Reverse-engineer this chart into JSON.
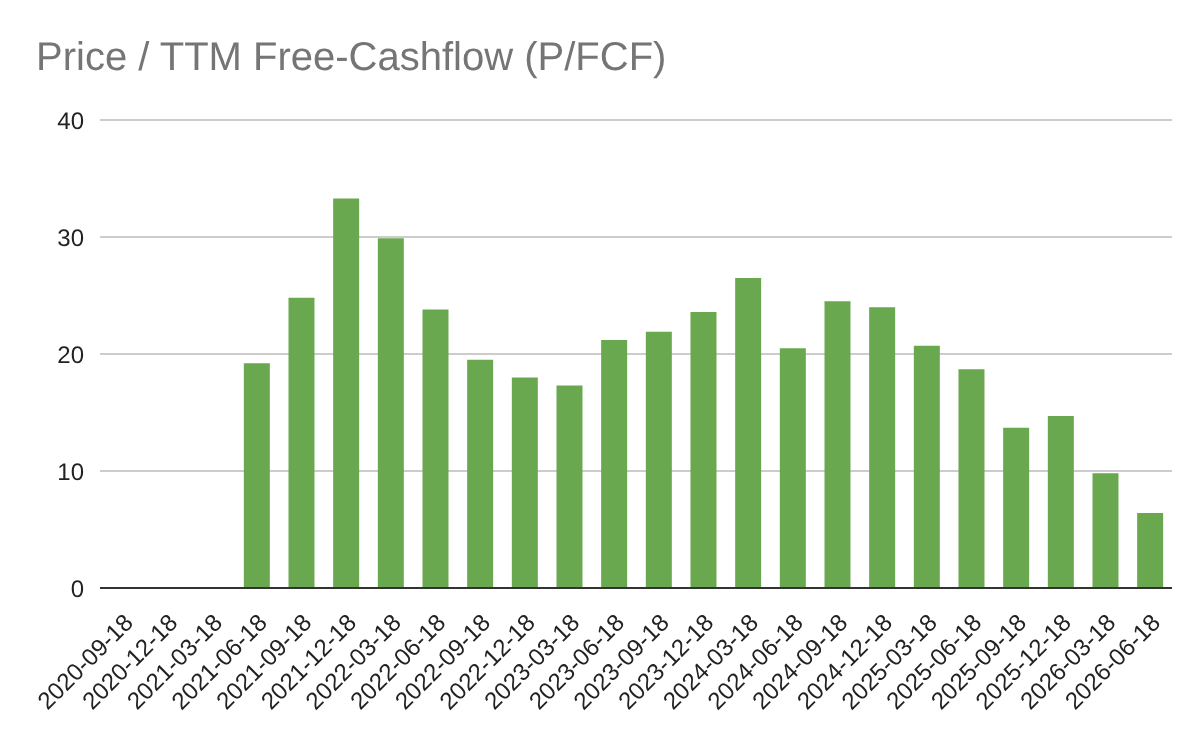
{
  "chart_data": {
    "type": "bar",
    "title": "Price / TTM Free-Cashflow (P/FCF)",
    "categories": [
      "2020-09-18",
      "2020-12-18",
      "2021-03-18",
      "2021-06-18",
      "2021-09-18",
      "2021-12-18",
      "2022-03-18",
      "2022-06-18",
      "2022-09-18",
      "2022-12-18",
      "2023-03-18",
      "2023-06-18",
      "2023-09-18",
      "2023-12-18",
      "2024-03-18",
      "2024-06-18",
      "2024-09-18",
      "2024-12-18",
      "2025-03-18",
      "2025-06-18",
      "2025-09-18",
      "2025-12-18",
      "2026-03-18",
      "2026-06-18"
    ],
    "values": [
      null,
      null,
      null,
      19.2,
      24.8,
      33.3,
      29.9,
      23.8,
      19.5,
      18.0,
      17.3,
      21.2,
      21.9,
      23.6,
      26.5,
      20.5,
      24.5,
      24.0,
      20.7,
      18.7,
      13.7,
      14.7,
      9.8,
      6.4
    ],
    "color": "#6aa84f",
    "ylim": [
      0,
      40
    ],
    "yticks": [
      0,
      10,
      20,
      30,
      40
    ],
    "grid": "y",
    "legend": false
  }
}
